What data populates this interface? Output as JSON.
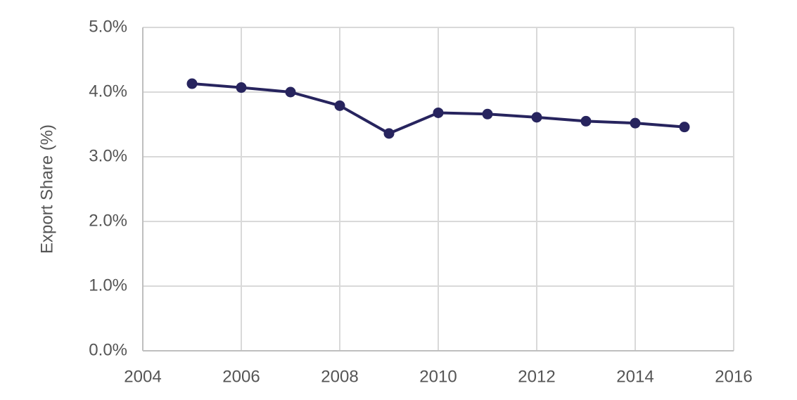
{
  "chart_data": {
    "type": "line",
    "y_label": "Export Share (%)",
    "x": [
      2005,
      2006,
      2007,
      2008,
      2009,
      2010,
      2011,
      2012,
      2013,
      2014,
      2015
    ],
    "series": [
      {
        "name": "Export Share",
        "color": "#27245e",
        "values": [
          4.13,
          4.07,
          4.0,
          3.79,
          3.36,
          3.68,
          3.66,
          3.61,
          3.55,
          3.52,
          3.46
        ]
      }
    ],
    "xlim": [
      2004,
      2016
    ],
    "xticks": [
      2004,
      2006,
      2008,
      2010,
      2012,
      2014,
      2016
    ],
    "ylim": [
      0,
      5
    ],
    "yticks": [
      {
        "value": 0,
        "label": "0.0%"
      },
      {
        "value": 1,
        "label": "1.0%"
      },
      {
        "value": 2,
        "label": "2.0%"
      },
      {
        "value": 3,
        "label": "3.0%"
      },
      {
        "value": 4,
        "label": "4.0%"
      },
      {
        "value": 5,
        "label": "5.0%"
      }
    ],
    "grid": true
  }
}
